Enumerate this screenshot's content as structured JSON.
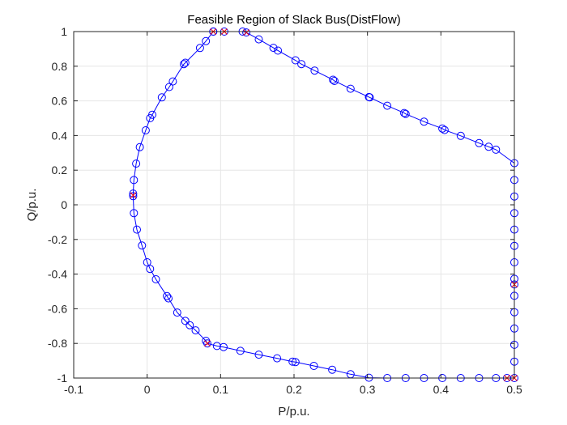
{
  "chart_data": {
    "type": "line",
    "title": "Feasible Region of Slack Bus(DistFlow)",
    "xlabel": "P/p.u.",
    "ylabel": "Q/p.u.",
    "xlim": [
      -0.1,
      0.5
    ],
    "ylim": [
      -1,
      1
    ],
    "xticks": [
      -0.1,
      0,
      0.1,
      0.2,
      0.3,
      0.4,
      0.5
    ],
    "xtick_labels": [
      "-0.1",
      "0",
      "0.1",
      "0.2",
      "0.3",
      "0.4",
      "0.5"
    ],
    "yticks": [
      -1,
      -0.8,
      -0.6,
      -0.4,
      -0.2,
      0,
      0.2,
      0.4,
      0.6,
      0.8,
      1
    ],
    "ytick_labels": [
      "-1",
      "-0.8",
      "-0.6",
      "-0.4",
      "-0.2",
      "0",
      "0.2",
      "0.4",
      "0.6",
      "0.8",
      "1"
    ],
    "grid": true,
    "colors": {
      "series": "#0000ff",
      "highlight": "#ff0000",
      "grid": "#e6e6e6",
      "axes": "#262626"
    },
    "series": [
      {
        "marker": "circle",
        "points": [
          [
            0.09,
            1.0
          ],
          [
            0.105,
            1.0
          ],
          [
            0.13,
            1.0
          ],
          [
            0.135,
            0.995
          ],
          [
            0.152,
            0.955
          ],
          [
            0.172,
            0.906
          ],
          [
            0.178,
            0.89
          ],
          [
            0.202,
            0.834
          ],
          [
            0.21,
            0.812
          ],
          [
            0.228,
            0.775
          ],
          [
            0.253,
            0.722
          ],
          [
            0.255,
            0.715
          ],
          [
            0.277,
            0.67
          ],
          [
            0.302,
            0.622
          ],
          [
            0.303,
            0.62
          ],
          [
            0.327,
            0.572
          ],
          [
            0.35,
            0.53
          ],
          [
            0.352,
            0.525
          ],
          [
            0.377,
            0.48
          ],
          [
            0.402,
            0.44
          ],
          [
            0.405,
            0.432
          ],
          [
            0.427,
            0.398
          ],
          [
            0.452,
            0.356
          ],
          [
            0.465,
            0.335
          ],
          [
            0.475,
            0.318
          ],
          [
            0.5,
            0.24
          ],
          [
            0.5,
            0.143
          ],
          [
            0.5,
            0.048
          ],
          [
            0.5,
            -0.048
          ],
          [
            0.5,
            -0.143
          ],
          [
            0.5,
            -0.237
          ],
          [
            0.5,
            -0.332
          ],
          [
            0.5,
            -0.427
          ],
          [
            0.5,
            -0.46
          ],
          [
            0.5,
            -0.525
          ],
          [
            0.5,
            -0.62
          ],
          [
            0.5,
            -0.714
          ],
          [
            0.5,
            -0.808
          ],
          [
            0.5,
            -0.905
          ],
          [
            0.5,
            -1.0
          ],
          [
            0.49,
            -1.0
          ],
          [
            0.475,
            -1.0
          ],
          [
            0.452,
            -1.0
          ],
          [
            0.427,
            -1.0
          ],
          [
            0.402,
            -1.0
          ],
          [
            0.377,
            -1.0
          ],
          [
            0.352,
            -1.0
          ],
          [
            0.327,
            -1.0
          ],
          [
            0.302,
            -0.998
          ],
          [
            0.277,
            -0.978
          ],
          [
            0.252,
            -0.952
          ],
          [
            0.227,
            -0.93
          ],
          [
            0.202,
            -0.908
          ],
          [
            0.198,
            -0.905
          ],
          [
            0.177,
            -0.886
          ],
          [
            0.152,
            -0.865
          ],
          [
            0.127,
            -0.843
          ],
          [
            0.104,
            -0.821
          ],
          [
            0.095,
            -0.815
          ],
          [
            0.082,
            -0.8
          ],
          [
            0.08,
            -0.785
          ],
          [
            0.066,
            -0.725
          ],
          [
            0.058,
            -0.695
          ],
          [
            0.052,
            -0.67
          ],
          [
            0.041,
            -0.622
          ],
          [
            0.029,
            -0.54
          ],
          [
            0.027,
            -0.527
          ],
          [
            0.012,
            -0.43
          ],
          [
            0.004,
            -0.37
          ],
          [
            0.0,
            -0.332
          ],
          [
            -0.007,
            -0.235
          ],
          [
            -0.014,
            -0.143
          ],
          [
            -0.018,
            -0.048
          ],
          [
            -0.019,
            0.05
          ],
          [
            -0.019,
            0.065
          ],
          [
            -0.018,
            0.143
          ],
          [
            -0.015,
            0.238
          ],
          [
            -0.01,
            0.333
          ],
          [
            -0.002,
            0.43
          ],
          [
            0.004,
            0.5
          ],
          [
            0.007,
            0.52
          ],
          [
            0.02,
            0.62
          ],
          [
            0.03,
            0.68
          ],
          [
            0.035,
            0.712
          ],
          [
            0.05,
            0.812
          ],
          [
            0.052,
            0.82
          ],
          [
            0.072,
            0.905
          ],
          [
            0.08,
            0.945
          ],
          [
            0.09,
            1.0
          ]
        ]
      }
    ],
    "highlight_points": [
      [
        0.09,
        1.0
      ],
      [
        0.105,
        1.0
      ],
      [
        0.135,
        0.995
      ],
      [
        0.5,
        -0.46
      ],
      [
        0.49,
        -1.0
      ],
      [
        0.5,
        -1.0
      ],
      [
        0.082,
        -0.8
      ],
      [
        -0.019,
        0.055
      ]
    ]
  }
}
